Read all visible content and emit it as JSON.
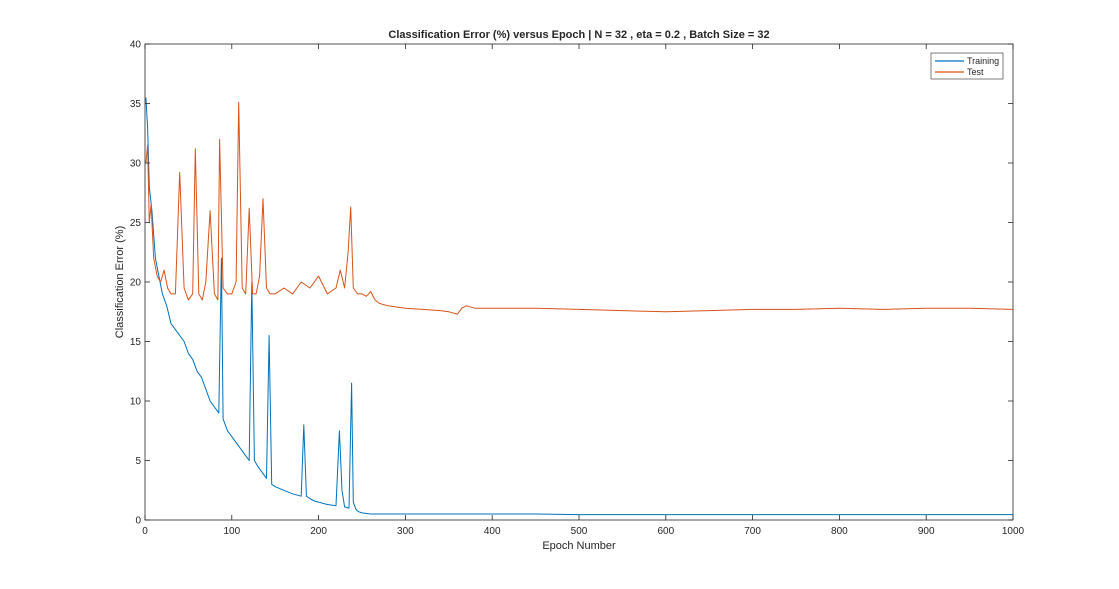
{
  "chart_data": {
    "type": "line",
    "title": "Classification Error (%) versus Epoch | N = 32 , eta = 0.2 , Batch Size = 32",
    "xlabel": "Epoch Number",
    "ylabel": "Classification Error (%)",
    "xlim": [
      0,
      1000
    ],
    "ylim": [
      0,
      40
    ],
    "xticks": [
      "0",
      "100",
      "200",
      "300",
      "400",
      "500",
      "600",
      "700",
      "800",
      "900",
      "1000"
    ],
    "yticks": [
      "0",
      "5",
      "10",
      "15",
      "20",
      "25",
      "30",
      "35",
      "40"
    ],
    "grid": false,
    "legend_position": "top-right",
    "series": [
      {
        "name": "Training",
        "color": "#0072BD",
        "x": [
          1,
          3,
          5,
          8,
          12,
          16,
          20,
          25,
          30,
          35,
          40,
          45,
          50,
          55,
          60,
          65,
          70,
          75,
          80,
          85,
          88,
          90,
          95,
          100,
          105,
          110,
          115,
          120,
          123,
          126,
          130,
          135,
          140,
          143,
          146,
          150,
          160,
          170,
          180,
          183,
          186,
          190,
          195,
          200,
          210,
          220,
          224,
          227,
          230,
          235,
          238,
          240,
          243,
          246,
          250,
          260,
          270,
          300,
          350,
          400,
          450,
          500,
          600,
          700,
          800,
          900,
          1000
        ],
        "y": [
          35.5,
          33,
          28,
          26,
          22,
          20.5,
          19,
          18,
          16.5,
          16,
          15.5,
          15,
          14,
          13.5,
          12.5,
          12,
          11,
          10,
          9.5,
          9,
          22,
          8.5,
          7.5,
          7,
          6.5,
          6,
          5.5,
          5,
          20,
          5,
          4.5,
          4,
          3.5,
          15.5,
          3,
          2.8,
          2.5,
          2.2,
          2,
          8,
          2,
          1.8,
          1.6,
          1.5,
          1.3,
          1.2,
          7.5,
          2.5,
          1.1,
          1,
          11.5,
          1.5,
          0.9,
          0.7,
          0.6,
          0.5,
          0.5,
          0.5,
          0.5,
          0.5,
          0.5,
          0.45,
          0.45,
          0.45,
          0.45,
          0.45,
          0.45
        ]
      },
      {
        "name": "Test",
        "color": "#D95319",
        "x": [
          1,
          3,
          5,
          7,
          10,
          14,
          18,
          22,
          26,
          30,
          35,
          40,
          45,
          50,
          55,
          58,
          62,
          66,
          70,
          75,
          80,
          84,
          86,
          90,
          95,
          100,
          105,
          108,
          112,
          116,
          120,
          124,
          128,
          132,
          136,
          140,
          144,
          150,
          160,
          170,
          180,
          190,
          200,
          210,
          220,
          225,
          230,
          234,
          237,
          240,
          245,
          250,
          255,
          260,
          265,
          270,
          280,
          300,
          320,
          340,
          350,
          360,
          365,
          370,
          380,
          400,
          450,
          500,
          550,
          600,
          650,
          700,
          750,
          800,
          850,
          900,
          950,
          1000
        ],
        "y": [
          30,
          31.5,
          25,
          26.5,
          22,
          20.5,
          20,
          21,
          19.5,
          19,
          19,
          29.2,
          19.5,
          18.5,
          19,
          31.2,
          19,
          18.5,
          20,
          26,
          19,
          18.5,
          32,
          19.5,
          19,
          19,
          20,
          35.1,
          19.5,
          19,
          26.2,
          19,
          19,
          20.5,
          27,
          19.5,
          19,
          19,
          19.5,
          19,
          20,
          19.5,
          20.5,
          19,
          19.5,
          21,
          19.5,
          22.5,
          26.3,
          19.5,
          19,
          19,
          18.8,
          19.2,
          18.5,
          18.2,
          18,
          17.8,
          17.7,
          17.6,
          17.5,
          17.3,
          17.8,
          18,
          17.8,
          17.8,
          17.8,
          17.7,
          17.6,
          17.5,
          17.6,
          17.7,
          17.7,
          17.8,
          17.7,
          17.8,
          17.8,
          17.7
        ]
      }
    ]
  }
}
